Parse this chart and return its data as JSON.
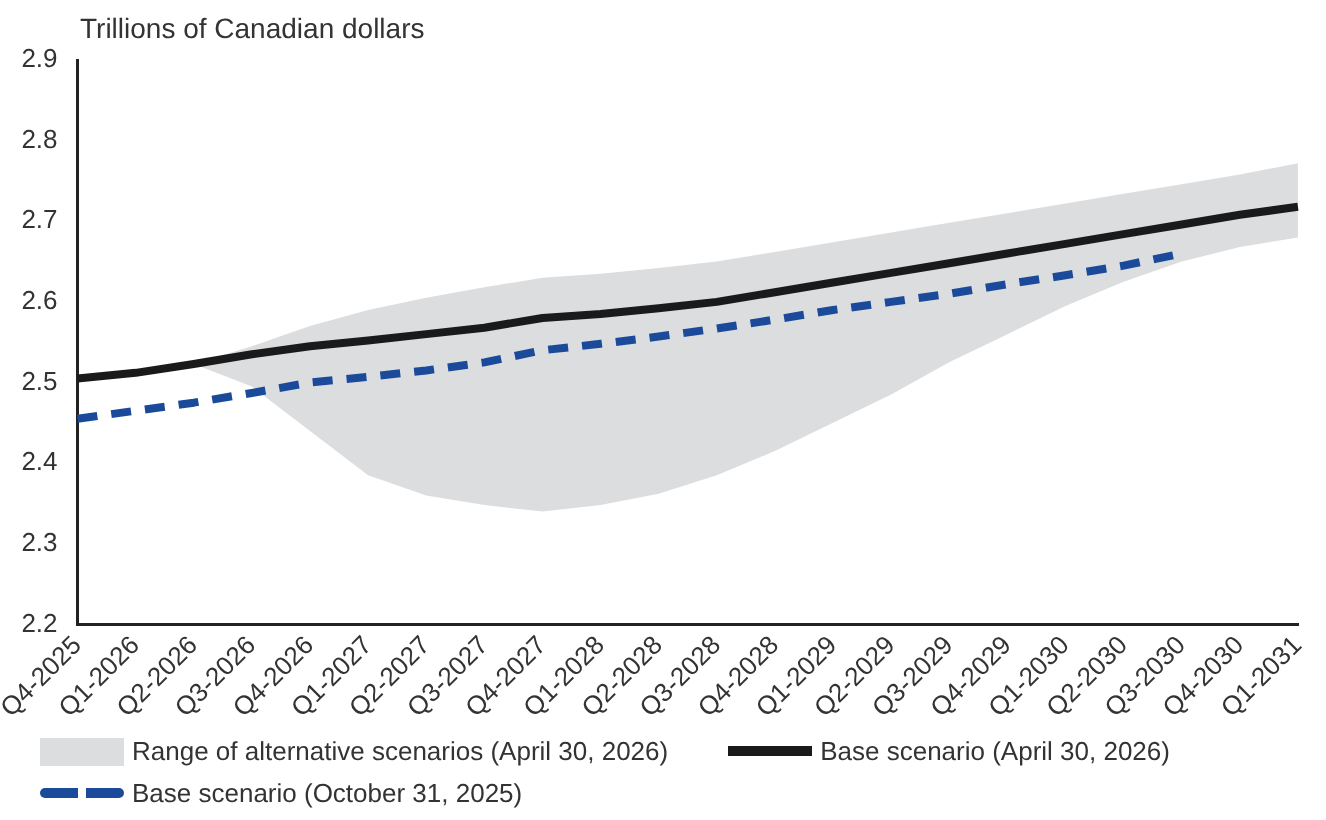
{
  "chart_data": {
    "type": "line",
    "ylabel": "Trillions of Canadian dollars",
    "annotations": [
      "Range of alternative scenarios (April 30, 2026)"
    ],
    "categories": [
      "Q4-2025",
      "Q1-2026",
      "Q2-2026",
      "Q3-2026",
      "Q4-2026",
      "Q1-2027",
      "Q2-2027",
      "Q3-2027",
      "Q4-2027",
      "Q1-2028",
      "Q2-2028",
      "Q3-2028",
      "Q4-2028",
      "Q1-2029",
      "Q2-2029",
      "Q3-2029",
      "Q4-2029",
      "Q1-2030",
      "Q2-2030",
      "Q3-2030",
      "Q4-2030",
      "Q1-2031"
    ],
    "series": [
      {
        "name": "Base scenario (April 30, 2026)",
        "type": "line",
        "color": "#1a1a1a",
        "line_style": "solid",
        "values": [
          2.505,
          2.512,
          2.523,
          2.535,
          2.545,
          2.552,
          2.56,
          2.568,
          2.58,
          2.585,
          2.592,
          2.6,
          2.612,
          2.624,
          2.636,
          2.648,
          2.66,
          2.672,
          2.684,
          2.696,
          2.708,
          2.718
        ],
        "lower": [
          null,
          null,
          2.523,
          2.495,
          2.44,
          2.385,
          2.36,
          2.348,
          2.34,
          2.348,
          2.362,
          2.385,
          2.415,
          2.45,
          2.485,
          2.525,
          2.56,
          2.595,
          2.625,
          2.65,
          2.668,
          2.68
        ],
        "upper": [
          null,
          null,
          2.523,
          2.545,
          2.57,
          2.59,
          2.605,
          2.618,
          2.63,
          2.635,
          2.642,
          2.65,
          2.662,
          2.674,
          2.686,
          2.698,
          2.71,
          2.722,
          2.734,
          2.746,
          2.758,
          2.772
        ]
      },
      {
        "name": "Base scenario (October 31, 2025)",
        "type": "line",
        "color": "#1b4a9a",
        "line_style": "dashed",
        "values": [
          2.455,
          2.465,
          2.475,
          2.487,
          2.5,
          2.507,
          2.515,
          2.525,
          2.54,
          2.548,
          2.557,
          2.567,
          2.578,
          2.59,
          2.6,
          2.61,
          2.622,
          2.633,
          2.645,
          2.66,
          null,
          null
        ]
      }
    ],
    "ylim": [
      2.2,
      2.9
    ],
    "yticks": [
      2.2,
      2.3,
      2.4,
      2.5,
      2.6,
      2.7,
      2.8,
      2.9
    ],
    "grid": false,
    "legend": "bottom",
    "marker": "none"
  }
}
